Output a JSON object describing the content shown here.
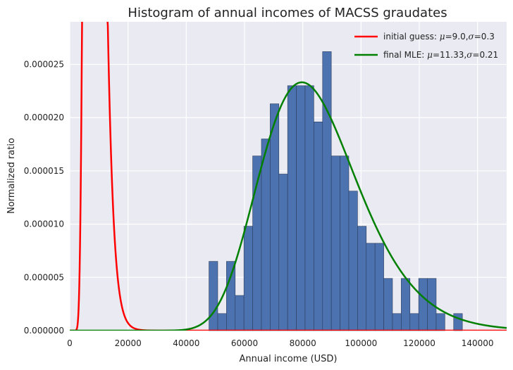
{
  "chart_data": {
    "type": "histogram",
    "title": "Histogram of annual incomes of MACSS graudates",
    "xlabel": "Annual income (USD)",
    "ylabel": "Normalized ratio",
    "xlim": [
      0,
      150000
    ],
    "ylim": [
      0,
      2.9e-05
    ],
    "xticks": [
      0,
      20000,
      40000,
      60000,
      80000,
      100000,
      120000,
      140000
    ],
    "xtick_labels": [
      "0",
      "20000",
      "40000",
      "60000",
      "80000",
      "100000",
      "120000",
      "140000"
    ],
    "yticks": [
      0,
      5e-06,
      1e-05,
      1.5e-05,
      2e-05,
      2.5e-05
    ],
    "ytick_labels": [
      "0.000000",
      "0.000005",
      "0.000010",
      "0.000015",
      "0.000020",
      "0.000025"
    ],
    "grid": true,
    "background": "#eaeaf2",
    "bar_color": "#4c72b0",
    "bins": {
      "start": 47800,
      "width": 3000,
      "values": [
        6.5e-06,
        1.6e-06,
        6.5e-06,
        3.3e-06,
        9.8e-06,
        1.64e-05,
        1.8e-05,
        2.13e-05,
        1.47e-05,
        2.3e-05,
        2.3e-05,
        2.3e-05,
        1.96e-05,
        2.62e-05,
        1.64e-05,
        1.64e-05,
        1.31e-05,
        9.8e-06,
        8.2e-06,
        8.2e-06,
        4.9e-06,
        1.6e-06,
        4.9e-06,
        1.6e-06,
        4.9e-06,
        4.9e-06,
        1.6e-06,
        0,
        1.6e-06
      ]
    },
    "series": [
      {
        "name": "initial guess: μ=9.0,σ=0.3",
        "mu": 9.0,
        "sigma": 0.3,
        "color": "#ff0000"
      },
      {
        "name": "final MLE: μ=11.33,σ=0.21",
        "mu": 11.33,
        "sigma": 0.21,
        "color": "#008000"
      }
    ],
    "legend": {
      "placement": "top-right",
      "items": [
        {
          "prefix": "initial guess: ",
          "mu_sym": "μ",
          "mu_val": "=9.0,",
          "sigma_sym": "σ",
          "sigma_val": "=0.3",
          "color": "#ff0000"
        },
        {
          "prefix": "final MLE: ",
          "mu_sym": "μ",
          "mu_val": "=11.33,",
          "sigma_sym": "σ",
          "sigma_val": "=0.21",
          "color": "#008000"
        }
      ]
    }
  }
}
